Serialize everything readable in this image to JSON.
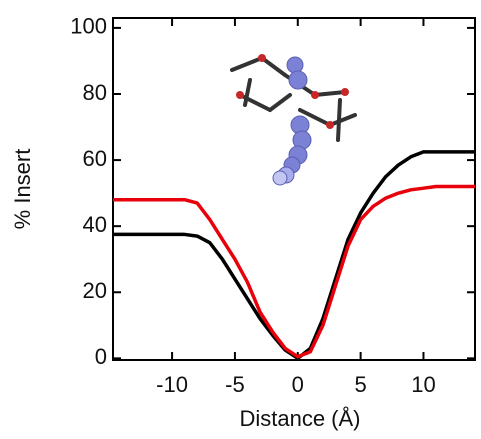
{
  "chart_data": {
    "type": "line",
    "x_label": "Distance (Å)",
    "y_label": "% Insert",
    "x": [
      -14.7,
      -9,
      -8,
      -7,
      -6,
      -5,
      -4,
      -3,
      -2,
      -1,
      0,
      1,
      2,
      3,
      4,
      5,
      6,
      7,
      8,
      9,
      10,
      11,
      14.1
    ],
    "series": [
      {
        "color": "#000000",
        "values": [
          37.5,
          37.5,
          37,
          35,
          30,
          24,
          18,
          12,
          7,
          2.5,
          0,
          3,
          12,
          24,
          36,
          44,
          50,
          55,
          58.5,
          61,
          62.5,
          62.5,
          62.5
        ]
      },
      {
        "color": "#e8000b",
        "values": [
          48,
          48,
          47,
          42,
          36,
          30,
          23,
          14,
          8,
          3,
          0.5,
          2,
          10,
          22,
          34,
          42,
          46,
          48.5,
          50,
          51,
          51.5,
          52,
          52
        ]
      }
    ],
    "xlim": [
      -14.7,
      14.1
    ],
    "ylim": [
      -0.5,
      103
    ],
    "xticks": [
      -10,
      -5,
      0,
      5,
      10
    ],
    "yticks": [
      0,
      20,
      40,
      60,
      80,
      100
    ]
  }
}
